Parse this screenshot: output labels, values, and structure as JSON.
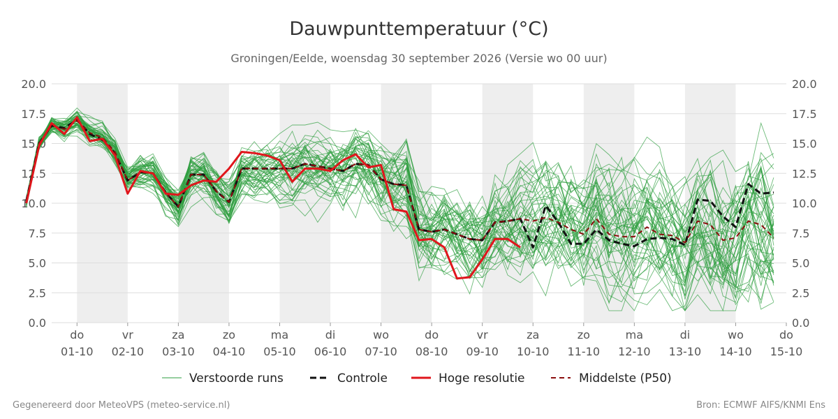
{
  "title": "Dauwpunttemperatuur (°C)",
  "subtitle": "Groningen/Eelde, woensdag 30 september 2026 (Versie wo 00 uur)",
  "footer_left": "Gegenereerd door MeteoVPS (meteo-service.nl)",
  "footer_right": "Bron: ECMWF AIFS/KNMI Ens",
  "colors": {
    "ensemble": "#2e9e3f",
    "control": "#111111",
    "hres": "#e0161c",
    "median": "#8b0e0e",
    "band": "#eeeeee",
    "grid": "#dddddd"
  },
  "chart_data": {
    "type": "line",
    "title": "Dauwpunttemperatuur (°C)",
    "ylim": [
      0,
      20
    ],
    "yticks": [
      "0.0",
      "2.5",
      "5.0",
      "7.5",
      "10.0",
      "12.5",
      "15.0",
      "17.5",
      "20.0"
    ],
    "xlim": [
      0,
      15.5
    ],
    "x_ticks": [
      {
        "x": 1,
        "day": "do",
        "date": "01-10"
      },
      {
        "x": 2,
        "day": "vr",
        "date": "02-10"
      },
      {
        "x": 3,
        "day": "za",
        "date": "03-10"
      },
      {
        "x": 4,
        "day": "zo",
        "date": "04-10"
      },
      {
        "x": 5,
        "day": "ma",
        "date": "05-10"
      },
      {
        "x": 6,
        "day": "di",
        "date": "06-10"
      },
      {
        "x": 7,
        "day": "wo",
        "date": "07-10"
      },
      {
        "x": 8,
        "day": "do",
        "date": "08-10"
      },
      {
        "x": 9,
        "day": "vr",
        "date": "09-10"
      },
      {
        "x": 10,
        "day": "za",
        "date": "10-10"
      },
      {
        "x": 11,
        "day": "zo",
        "date": "11-10"
      },
      {
        "x": 12,
        "day": "ma",
        "date": "12-10"
      },
      {
        "x": 13,
        "day": "di",
        "date": "13-10"
      },
      {
        "x": 14,
        "day": "wo",
        "date": "14-10"
      },
      {
        "x": 15,
        "day": "do",
        "date": "15-10"
      }
    ],
    "shaded_days": [
      [
        1,
        2
      ],
      [
        3,
        4
      ],
      [
        5,
        6
      ],
      [
        7,
        8
      ],
      [
        9,
        10
      ],
      [
        11,
        12
      ],
      [
        13,
        14
      ]
    ],
    "x_step": 0.25,
    "x_start": 0,
    "ensemble_count": 50,
    "legend": [
      "Verstoorde runs",
      "Controle",
      "Hoge resolutie",
      "Middelste (P50)"
    ],
    "series": [
      {
        "name": "Controle",
        "values": [
          10.2,
          15.0,
          16.5,
          16.3,
          17.0,
          15.8,
          15.3,
          14.2,
          11.9,
          12.6,
          12.5,
          10.9,
          9.7,
          12.4,
          12.4,
          11.0,
          10.1,
          12.9,
          12.9,
          12.9,
          12.9,
          12.9,
          13.3,
          13.1,
          12.9,
          12.7,
          13.3,
          13.2,
          12.0,
          11.6,
          11.5,
          7.8,
          7.6,
          7.8,
          7.4,
          7.0,
          6.9,
          8.4,
          8.5,
          8.7,
          6.3,
          9.8,
          8.4,
          6.6,
          6.6,
          7.8,
          6.9,
          6.6,
          6.4,
          7.0,
          7.1,
          7.0,
          6.5,
          10.3,
          10.2,
          8.9,
          8.0,
          11.6,
          10.8,
          10.9
        ]
      },
      {
        "name": "Hoge resolutie",
        "values": [
          10.0,
          14.8,
          16.7,
          15.8,
          17.2,
          15.2,
          15.4,
          14.0,
          10.8,
          12.7,
          12.5,
          10.8,
          10.7,
          11.5,
          11.9,
          11.8,
          12.9,
          14.3,
          14.2,
          14.0,
          13.6,
          11.8,
          12.9,
          12.9,
          12.7,
          13.6,
          14.1,
          13.0,
          13.2,
          9.5,
          9.3,
          6.9,
          7.0,
          6.3,
          3.7,
          3.8,
          5.3,
          7.0,
          7.0,
          6.3
        ]
      },
      {
        "name": "Middelste (P50)",
        "values": [
          10.1,
          15.0,
          16.5,
          16.2,
          16.9,
          15.9,
          15.5,
          14.3,
          11.9,
          12.6,
          12.5,
          10.9,
          9.7,
          12.4,
          12.4,
          11.0,
          10.1,
          12.9,
          12.9,
          12.9,
          12.9,
          12.9,
          13.3,
          13.1,
          12.9,
          12.7,
          13.3,
          13.2,
          12.0,
          11.6,
          11.5,
          7.8,
          7.6,
          7.8,
          7.4,
          7.0,
          6.9,
          8.4,
          8.5,
          8.7,
          8.5,
          8.8,
          8.4,
          7.8,
          7.4,
          8.7,
          7.4,
          7.2,
          7.2,
          8.0,
          7.4,
          7.3,
          6.7,
          8.5,
          8.2,
          6.9,
          7.1,
          8.5,
          8.2,
          7.1
        ]
      }
    ]
  }
}
